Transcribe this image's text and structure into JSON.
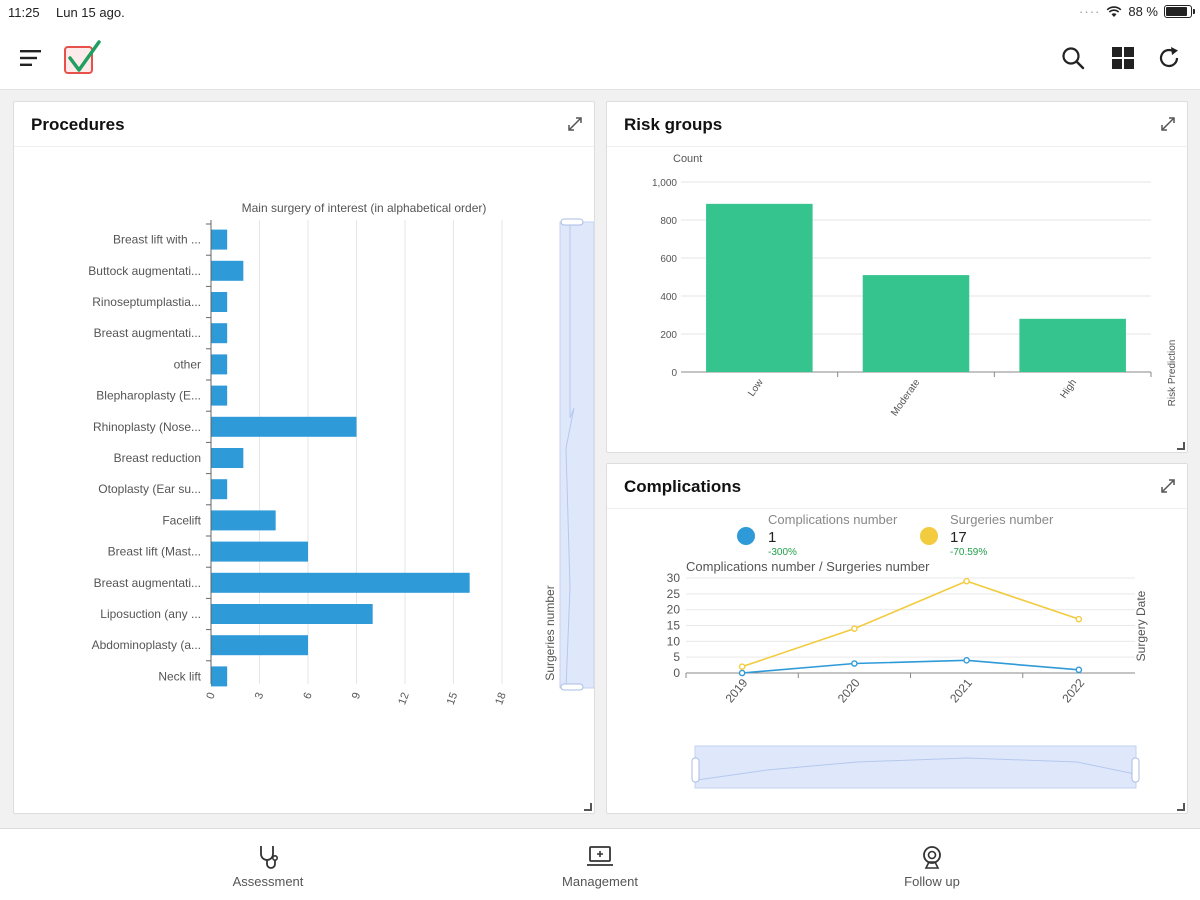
{
  "status": {
    "time": "11:25",
    "date": "Lun 15 ago.",
    "battery": "88 %",
    "battery_level": 0.88
  },
  "appbar": {
    "icons": [
      "menu-icon",
      "app-logo-check",
      "search-icon",
      "grid-icon",
      "refresh-icon"
    ]
  },
  "colors": {
    "bar_blue": "#2f9ad8",
    "bar_green": "#35c48d",
    "line_blue": "#2f9ad8",
    "line_yellow": "#f2cb3f",
    "positive_text": "#22a04a",
    "zoom_fill": "#dfe8fb"
  },
  "procedures": {
    "title": "Procedures",
    "chart_data": {
      "type": "bar",
      "orientation": "horizontal",
      "title": "Main surgery of interest (in alphabetical order)",
      "value_axis_label": "Surgeries number",
      "categories": [
        "Breast lift with ...",
        "Buttock augmentati...",
        "Rinoseptumplastia...",
        "Breast augmentati...",
        "other",
        "Blepharoplasty (E...",
        "Rhinoplasty (Nose...",
        "Breast reduction",
        "Otoplasty (Ear su...",
        "Facelift",
        "Breast lift (Mast...",
        "Breast augmentati...",
        "Liposuction (any ...",
        "Abdominoplasty (a...",
        "Neck lift"
      ],
      "values": [
        1,
        2,
        1,
        1,
        1,
        1,
        9,
        2,
        1,
        4,
        6,
        16,
        10,
        6,
        1
      ],
      "xlim": [
        0,
        18
      ],
      "xticks": [
        "0",
        "3",
        "6",
        "9",
        "12",
        "15",
        "18"
      ],
      "grid": true
    }
  },
  "risk": {
    "title": "Risk groups",
    "chart_data": {
      "type": "bar",
      "ylabel": "Count",
      "xlabel": "Risk Prediction",
      "categories": [
        "Low",
        "Moderate",
        "High"
      ],
      "values": [
        885,
        510,
        280
      ],
      "ylim": [
        0,
        1000
      ],
      "yticks": [
        "1,000",
        "800",
        "600",
        "400",
        "200",
        "0"
      ],
      "grid": true
    }
  },
  "complications": {
    "title": "Complications",
    "kpis": [
      {
        "name": "Complications number",
        "value": "1",
        "change": "-300%"
      },
      {
        "name": "Surgeries number",
        "value": "17",
        "change": "-70.59%"
      }
    ],
    "chart_data": {
      "type": "line",
      "title": "Complications number / Surgeries number",
      "xlabel": "Surgery Date",
      "x": [
        "2019",
        "2020",
        "2021",
        "2022"
      ],
      "series": [
        {
          "name": "Complications number",
          "values": [
            0,
            3,
            4,
            1
          ]
        },
        {
          "name": "Surgeries number",
          "values": [
            2,
            14,
            29,
            17
          ]
        }
      ],
      "ylim": [
        0,
        30
      ],
      "yticks": [
        "30",
        "25",
        "20",
        "15",
        "10",
        "5",
        "0"
      ],
      "grid": true
    }
  },
  "tabs": [
    {
      "label": "Assessment",
      "icon": "stethoscope-icon"
    },
    {
      "label": "Management",
      "icon": "laptop-icon"
    },
    {
      "label": "Follow up",
      "icon": "webcam-icon"
    }
  ]
}
